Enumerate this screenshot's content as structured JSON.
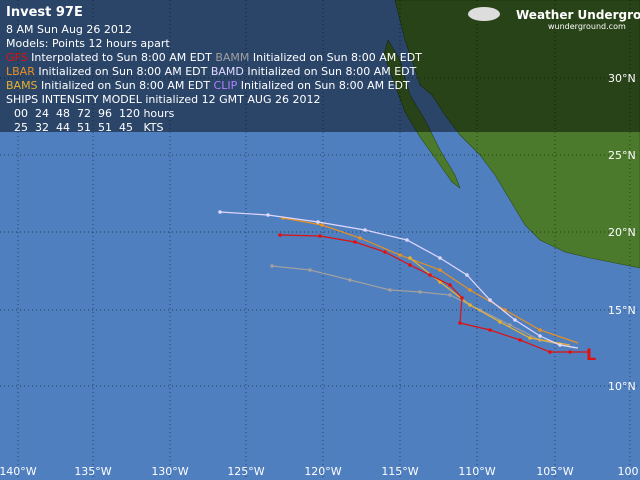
{
  "header": {
    "title": "Invest 97E",
    "date": "8 AM  Sun Aug 26 2012",
    "models": "Models:   Points 12 hours apart"
  },
  "legend": [
    {
      "model": "GFS",
      "text": "Interpolated to Sun 8:00 AM EDT"
    },
    {
      "model": "BAMM",
      "text": "Initialized on Sun 8:00 AM EDT"
    },
    {
      "model": "LBAR",
      "text": "Initialized on Sun 8:00 AM EDT"
    },
    {
      "model": "BAMD",
      "text": "Initialized on Sun 8:00 AM EDT"
    },
    {
      "model": "BAMS",
      "text": "Initialized on Sun 8:00 AM EDT"
    },
    {
      "model": "CLIP",
      "text": "Initialized on Sun 8:00 AM EDT"
    }
  ],
  "ships": {
    "title": "SHIPS INTENSITY MODEL initialized 12 GMT AUG 26 2012",
    "hours": "00  24  48  72  96  120 hours",
    "kts": "25  32  44  51  51  45   KTS"
  },
  "logo": {
    "name": "Weather Underground",
    "url": "wunderground.com"
  },
  "lat_labels": [
    "30°N",
    "25°N",
    "20°N",
    "15°N",
    "10°N"
  ],
  "lon_labels": [
    "140°W",
    "135°W",
    "130°W",
    "125°W",
    "120°W",
    "115°W",
    "110°W",
    "105°W",
    "100"
  ],
  "storm_symbol": "L"
}
